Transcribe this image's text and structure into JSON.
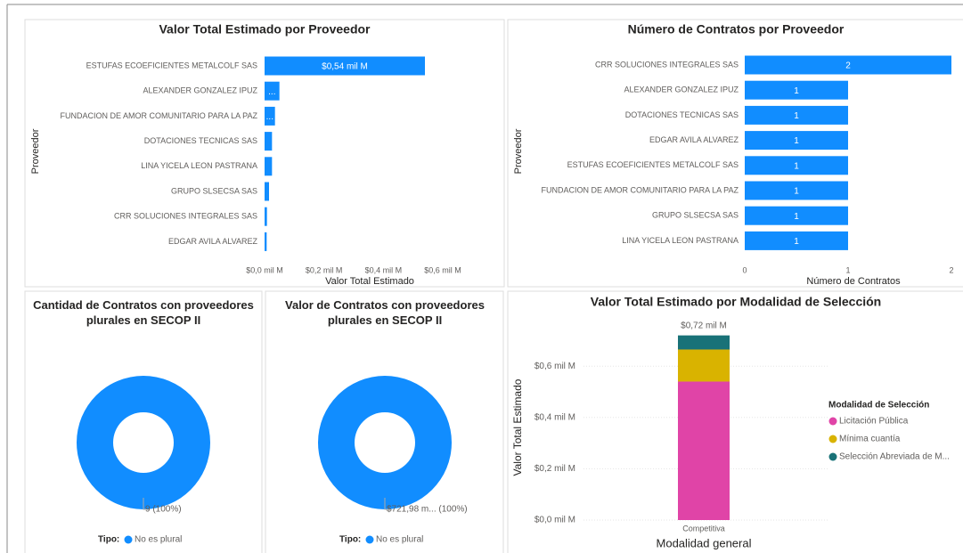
{
  "chart_data": [
    {
      "type": "hbar",
      "title": "Valor Total Estimado por Proveedor",
      "xlabel": "Valor Total Estimado",
      "ylabel": "Proveedor",
      "categories": [
        "ESTUFAS ECOEFICIENTES METALCOLF SAS",
        "ALEXANDER GONZALEZ IPUZ",
        "FUNDACION DE AMOR COMUNITARIO PARA LA PAZ",
        "DOTACIONES TECNICAS SAS",
        "LINA YICELA LEON PASTRANA",
        "GRUPO SLSECSA SAS",
        "CRR SOLUCIONES INTEGRALES SAS",
        "EDGAR AVILA ALVAREZ"
      ],
      "values": [
        0.54,
        0.05,
        0.035,
        0.025,
        0.025,
        0.015,
        0.008,
        0.007
      ],
      "value_labels": [
        "$0,54 mil M",
        "...",
        "...",
        null,
        null,
        null,
        null,
        null
      ],
      "color": "#118dff",
      "xlim": [
        0,
        0.72
      ],
      "xticks": [
        {
          "value": 0,
          "label": "$0,0 mil M"
        },
        {
          "value": 0.2,
          "label": "$0,2 mil M"
        },
        {
          "value": 0.4,
          "label": "$0,4 mil M"
        },
        {
          "value": 0.6,
          "label": "$0,6 mil M"
        }
      ]
    },
    {
      "type": "hbar",
      "title": "Número de Contratos por Proveedor",
      "xlabel": "Número de Contratos",
      "ylabel": "Proveedor",
      "categories": [
        "CRR SOLUCIONES INTEGRALES SAS",
        "ALEXANDER GONZALEZ IPUZ",
        "DOTACIONES TECNICAS SAS",
        "EDGAR AVILA ALVAREZ",
        "ESTUFAS ECOEFICIENTES METALCOLF SAS",
        "FUNDACION DE AMOR COMUNITARIO PARA LA PAZ",
        "GRUPO SLSECSA SAS",
        "LINA YICELA LEON PASTRANA"
      ],
      "values": [
        2,
        1,
        1,
        1,
        1,
        1,
        1,
        1
      ],
      "data_labels": true,
      "color": "#118dff",
      "xlim": [
        0,
        2
      ],
      "xticks": [
        0,
        1,
        2
      ]
    },
    {
      "type": "donut",
      "title": "Cantidad de Contratos con proveedores plurales en SECOP II",
      "legend_title": "Tipo:",
      "categories": [
        "No es plural"
      ],
      "values": [
        9
      ],
      "value_labels": [
        "9 (100%)"
      ],
      "colors": [
        "#118dff"
      ]
    },
    {
      "type": "donut",
      "title": "Valor de Contratos con proveedores plurales en SECOP II",
      "legend_title": "Tipo:",
      "categories": [
        "No es plural"
      ],
      "values": [
        721.98
      ],
      "value_labels": [
        "$721,98 m... (100%)"
      ],
      "colors": [
        "#118dff"
      ]
    },
    {
      "type": "stacked_bar",
      "title": "Valor Total Estimado por Modalidad de Selección",
      "xlabel": "Modalidad general",
      "ylabel": "Valor Total Estimado",
      "legend_title": "Modalidad de Selección",
      "categories": [
        "Competitiva"
      ],
      "series": [
        {
          "name": "Licitación Pública",
          "color": "#e044a7",
          "values": [
            0.54
          ]
        },
        {
          "name": "Mínima cuantía",
          "color": "#d9b300",
          "values": [
            0.125
          ]
        },
        {
          "name": "Selección Abreviada de M...",
          "color": "#197278",
          "values": [
            0.055
          ]
        }
      ],
      "total_labels": [
        "$0,72 mil M"
      ],
      "ylim": [
        0,
        0.75
      ],
      "grid": true,
      "yticks": [
        {
          "value": 0,
          "label": "$0,0 mil M"
        },
        {
          "value": 0.2,
          "label": "$0,2 mil M"
        },
        {
          "value": 0.4,
          "label": "$0,4 mil M"
        },
        {
          "value": 0.6,
          "label": "$0,6 mil M"
        }
      ]
    }
  ]
}
